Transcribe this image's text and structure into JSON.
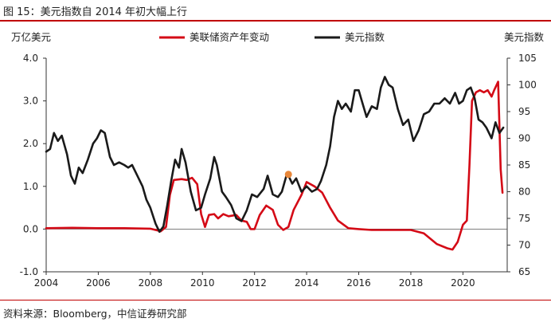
{
  "figure": {
    "title": "图 15：美元指数自 2014 年初大幅上行",
    "source": "资料来源：Bloomberg，中信证券研究部"
  },
  "colors": {
    "fed_assets": "#d40a16",
    "dxy": "#1a1a1a",
    "axis": "#333333",
    "title_rule": "#c00000",
    "marker": "#e8873a"
  },
  "chart_data": {
    "type": "line",
    "title": "",
    "y_left_label": "万亿美元",
    "y_right_label": "美元指数",
    "y_left_lim": [
      -1.0,
      4.0
    ],
    "y_right_lim": [
      65,
      105
    ],
    "x_lim": [
      2004,
      2021.7
    ],
    "x_ticks": [
      "2004",
      "2006",
      "2008",
      "2010",
      "2012",
      "2014",
      "2016",
      "2018",
      "2020"
    ],
    "y_left_ticks": [
      "-1.0",
      "0.0",
      "1.0",
      "2.0",
      "3.0",
      "4.0"
    ],
    "y_right_ticks": [
      "65",
      "70",
      "75",
      "80",
      "85",
      "90",
      "95",
      "100",
      "105"
    ],
    "legend_position": "top-center",
    "grid": false,
    "series": [
      {
        "name": "美联储资产年变动",
        "axis": "left",
        "color": "#d40a16",
        "points": [
          [
            2004.0,
            0.02
          ],
          [
            2005.0,
            0.03
          ],
          [
            2006.0,
            0.02
          ],
          [
            2007.0,
            0.02
          ],
          [
            2008.0,
            0.01
          ],
          [
            2008.4,
            -0.05
          ],
          [
            2008.6,
            0.05
          ],
          [
            2008.75,
            0.8
          ],
          [
            2008.9,
            1.15
          ],
          [
            2009.2,
            1.17
          ],
          [
            2009.4,
            1.15
          ],
          [
            2009.6,
            1.2
          ],
          [
            2009.8,
            1.05
          ],
          [
            2009.95,
            0.35
          ],
          [
            2010.1,
            0.05
          ],
          [
            2010.25,
            0.33
          ],
          [
            2010.45,
            0.35
          ],
          [
            2010.6,
            0.25
          ],
          [
            2010.8,
            0.35
          ],
          [
            2011.0,
            0.3
          ],
          [
            2011.3,
            0.33
          ],
          [
            2011.5,
            0.2
          ],
          [
            2011.7,
            0.17
          ],
          [
            2011.85,
            0.0
          ],
          [
            2012.0,
            0.0
          ],
          [
            2012.2,
            0.33
          ],
          [
            2012.45,
            0.55
          ],
          [
            2012.7,
            0.45
          ],
          [
            2012.9,
            0.1
          ],
          [
            2013.1,
            -0.02
          ],
          [
            2013.3,
            0.05
          ],
          [
            2013.5,
            0.45
          ],
          [
            2013.8,
            0.8
          ],
          [
            2014.0,
            1.1
          ],
          [
            2014.3,
            1.0
          ],
          [
            2014.6,
            0.85
          ],
          [
            2014.9,
            0.5
          ],
          [
            2015.2,
            0.2
          ],
          [
            2015.6,
            0.02
          ],
          [
            2016.0,
            0.0
          ],
          [
            2016.5,
            -0.02
          ],
          [
            2017.0,
            -0.02
          ],
          [
            2017.5,
            -0.02
          ],
          [
            2018.0,
            -0.02
          ],
          [
            2018.5,
            -0.1
          ],
          [
            2019.0,
            -0.35
          ],
          [
            2019.4,
            -0.45
          ],
          [
            2019.6,
            -0.48
          ],
          [
            2019.8,
            -0.3
          ],
          [
            2020.0,
            0.1
          ],
          [
            2020.15,
            0.2
          ],
          [
            2020.25,
            1.5
          ],
          [
            2020.35,
            3.0
          ],
          [
            2020.5,
            3.2
          ],
          [
            2020.65,
            3.25
          ],
          [
            2020.8,
            3.2
          ],
          [
            2020.95,
            3.25
          ],
          [
            2021.1,
            3.1
          ],
          [
            2021.2,
            3.25
          ],
          [
            2021.35,
            3.45
          ],
          [
            2021.45,
            1.4
          ],
          [
            2021.52,
            0.85
          ]
        ]
      },
      {
        "name": "美元指数",
        "axis": "right",
        "color": "#1a1a1a",
        "points": [
          [
            2004.0,
            87.5
          ],
          [
            2004.15,
            88.0
          ],
          [
            2004.3,
            91.0
          ],
          [
            2004.45,
            89.5
          ],
          [
            2004.6,
            90.5
          ],
          [
            2004.8,
            87.0
          ],
          [
            2004.95,
            83.0
          ],
          [
            2005.1,
            81.5
          ],
          [
            2005.25,
            84.5
          ],
          [
            2005.4,
            83.5
          ],
          [
            2005.6,
            86.0
          ],
          [
            2005.8,
            89.0
          ],
          [
            2005.95,
            90.0
          ],
          [
            2006.1,
            91.5
          ],
          [
            2006.25,
            91.0
          ],
          [
            2006.45,
            86.5
          ],
          [
            2006.6,
            85.0
          ],
          [
            2006.8,
            85.5
          ],
          [
            2007.0,
            85.0
          ],
          [
            2007.15,
            84.5
          ],
          [
            2007.3,
            85.0
          ],
          [
            2007.5,
            83.0
          ],
          [
            2007.7,
            81.0
          ],
          [
            2007.85,
            78.5
          ],
          [
            2008.0,
            77.0
          ],
          [
            2008.2,
            74.0
          ],
          [
            2008.35,
            72.5
          ],
          [
            2008.5,
            73.5
          ],
          [
            2008.65,
            77.5
          ],
          [
            2008.8,
            82.0
          ],
          [
            2008.95,
            86.0
          ],
          [
            2009.1,
            84.5
          ],
          [
            2009.2,
            88.0
          ],
          [
            2009.35,
            85.5
          ],
          [
            2009.55,
            80.0
          ],
          [
            2009.75,
            76.5
          ],
          [
            2009.95,
            77.0
          ],
          [
            2010.1,
            79.5
          ],
          [
            2010.3,
            82.5
          ],
          [
            2010.45,
            86.5
          ],
          [
            2010.55,
            85.0
          ],
          [
            2010.75,
            80.0
          ],
          [
            2010.9,
            79.0
          ],
          [
            2011.1,
            77.5
          ],
          [
            2011.3,
            75.0
          ],
          [
            2011.5,
            74.5
          ],
          [
            2011.7,
            76.5
          ],
          [
            2011.9,
            79.5
          ],
          [
            2012.1,
            79.0
          ],
          [
            2012.35,
            80.5
          ],
          [
            2012.5,
            83.0
          ],
          [
            2012.7,
            79.5
          ],
          [
            2012.9,
            79.0
          ],
          [
            2013.05,
            80.0
          ],
          [
            2013.25,
            83.5
          ],
          [
            2013.45,
            81.5
          ],
          [
            2013.6,
            82.5
          ],
          [
            2013.8,
            80.0
          ],
          [
            2014.0,
            81.0
          ],
          [
            2014.2,
            80.0
          ],
          [
            2014.4,
            80.5
          ],
          [
            2014.55,
            82.0
          ],
          [
            2014.75,
            85.0
          ],
          [
            2014.9,
            88.5
          ],
          [
            2015.05,
            94.0
          ],
          [
            2015.2,
            97.0
          ],
          [
            2015.35,
            95.5
          ],
          [
            2015.5,
            96.5
          ],
          [
            2015.7,
            95.0
          ],
          [
            2015.85,
            99.0
          ],
          [
            2016.0,
            99.0
          ],
          [
            2016.15,
            96.5
          ],
          [
            2016.3,
            94.0
          ],
          [
            2016.5,
            96.0
          ],
          [
            2016.7,
            95.5
          ],
          [
            2016.85,
            99.5
          ],
          [
            2017.0,
            101.5
          ],
          [
            2017.15,
            100.0
          ],
          [
            2017.3,
            99.5
          ],
          [
            2017.5,
            95.5
          ],
          [
            2017.7,
            92.5
          ],
          [
            2017.9,
            93.5
          ],
          [
            2018.1,
            89.5
          ],
          [
            2018.3,
            91.5
          ],
          [
            2018.5,
            94.5
          ],
          [
            2018.7,
            95.0
          ],
          [
            2018.9,
            96.5
          ],
          [
            2019.1,
            96.5
          ],
          [
            2019.3,
            97.5
          ],
          [
            2019.5,
            96.5
          ],
          [
            2019.7,
            98.5
          ],
          [
            2019.85,
            96.5
          ],
          [
            2020.0,
            97.0
          ],
          [
            2020.15,
            99.0
          ],
          [
            2020.3,
            99.5
          ],
          [
            2020.45,
            97.5
          ],
          [
            2020.6,
            93.5
          ],
          [
            2020.75,
            93.0
          ],
          [
            2020.9,
            92.0
          ],
          [
            2021.1,
            90.0
          ],
          [
            2021.25,
            93.0
          ],
          [
            2021.4,
            91.0
          ],
          [
            2021.55,
            92.0
          ]
        ]
      }
    ],
    "annotations": [
      {
        "type": "point",
        "x": 2013.3,
        "y": 1.28,
        "axis": "left",
        "color": "#e8873a"
      }
    ]
  }
}
